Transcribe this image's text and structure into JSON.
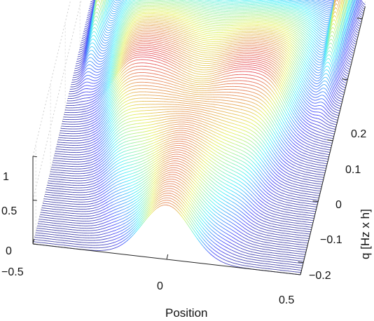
{
  "chart_data": {
    "type": "line",
    "subtype": "waterfall-3d",
    "title": "",
    "xlabel": "Position",
    "ylabel": "q [Hz x h]",
    "zlabel": "",
    "x_range": [
      -0.5,
      0.5
    ],
    "q_range": [
      -0.22,
      0.22
    ],
    "z_range": [
      0,
      1
    ],
    "x_ticks": [
      "−0.5",
      "0",
      "0.5"
    ],
    "q_ticks": [
      "0.2",
      "0.1",
      "0",
      "−0.1",
      "−0.2"
    ],
    "z_ticks": [
      "1",
      "0.5",
      "0"
    ],
    "grid": true,
    "colormap": "jet",
    "series_count": 120,
    "profile_description": "single gaussian peak at x=0 (height ~0.6) for q near -0.2, widening and flattening toward q=0 (height ~0.55-0.75 plateau), splitting into two sharp edge peaks at x=±0.45 (height ~1) for q near +0.2",
    "sample_profiles": [
      {
        "q": -0.22,
        "x": [
          -0.5,
          -0.3,
          -0.15,
          0,
          0.15,
          0.3,
          0.5
        ],
        "z": [
          0.0,
          0.02,
          0.25,
          0.6,
          0.25,
          0.02,
          0.0
        ]
      },
      {
        "q": 0.0,
        "x": [
          -0.5,
          -0.3,
          -0.15,
          0,
          0.15,
          0.3,
          0.5
        ],
        "z": [
          0.05,
          0.55,
          0.72,
          0.62,
          0.72,
          0.55,
          0.05
        ]
      },
      {
        "q": 0.22,
        "x": [
          -0.5,
          -0.45,
          -0.3,
          0,
          0.3,
          0.45,
          0.5
        ],
        "z": [
          0.2,
          1.0,
          0.15,
          0.08,
          0.15,
          1.0,
          0.2
        ]
      }
    ]
  }
}
